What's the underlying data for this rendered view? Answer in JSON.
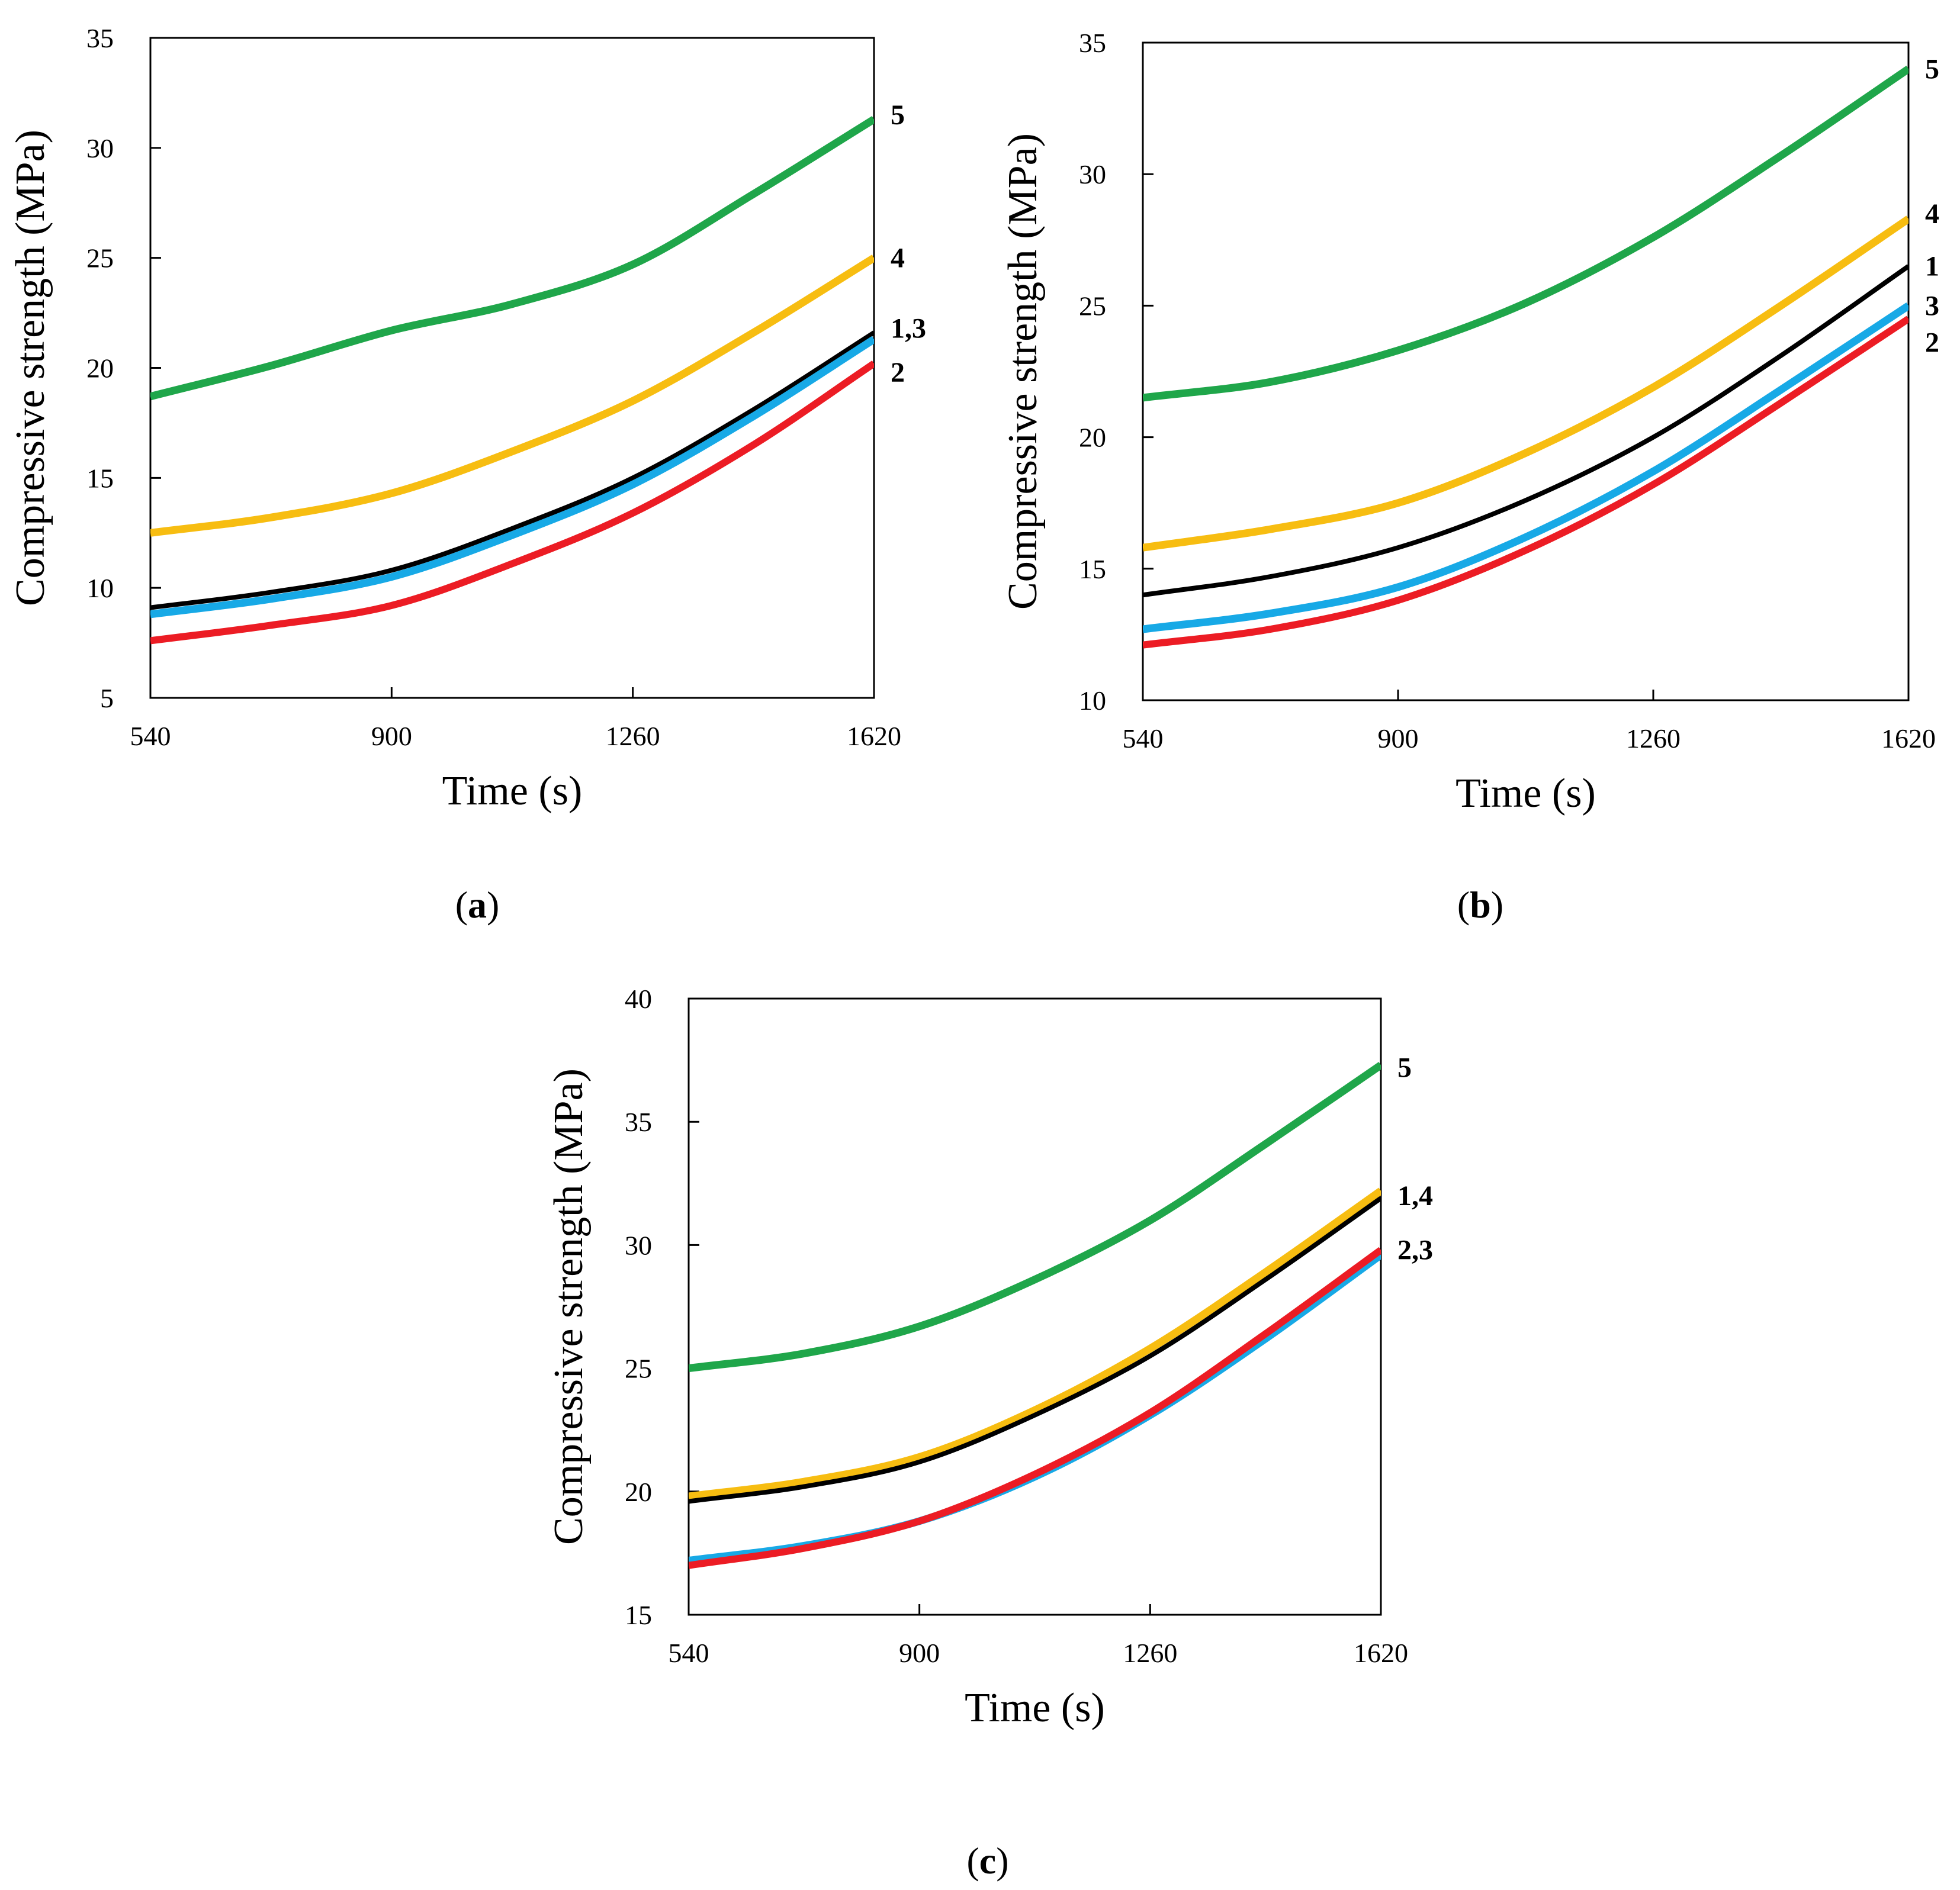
{
  "chart_data": [
    {
      "type": "line",
      "panel": "a",
      "xlabel": "Time (s)",
      "ylabel": "Compressive strength (MPa)",
      "xlim": [
        540,
        1620
      ],
      "ylim": [
        5,
        35
      ],
      "xticks": [
        540,
        900,
        1260,
        1620
      ],
      "yticks": [
        5,
        10,
        15,
        20,
        25,
        30,
        35
      ],
      "grid": false,
      "series": [
        {
          "name": "5",
          "color": "#1fa64a",
          "x": [
            540,
            720,
            900,
            1080,
            1260,
            1440,
            1620
          ],
          "y": [
            18.7,
            20.1,
            21.7,
            22.9,
            24.7,
            27.9,
            31.3
          ]
        },
        {
          "name": "4",
          "color": "#f7bd11",
          "x": [
            540,
            720,
            900,
            1080,
            1260,
            1440,
            1620
          ],
          "y": [
            12.5,
            13.2,
            14.3,
            16.2,
            18.5,
            21.6,
            25.0
          ]
        },
        {
          "name": "1",
          "color": "#000000",
          "x": [
            540,
            720,
            900,
            1080,
            1260,
            1440,
            1620
          ],
          "y": [
            9.1,
            9.8,
            10.8,
            12.7,
            15.0,
            18.1,
            21.6
          ]
        },
        {
          "name": "3",
          "color": "#17a9e6",
          "x": [
            540,
            720,
            900,
            1080,
            1260,
            1440,
            1620
          ],
          "y": [
            8.8,
            9.5,
            10.5,
            12.4,
            14.7,
            17.8,
            21.3
          ]
        },
        {
          "name": "2",
          "color": "#ec1c24",
          "x": [
            540,
            720,
            900,
            1080,
            1260,
            1440,
            1620
          ],
          "y": [
            7.6,
            8.3,
            9.2,
            11.1,
            13.4,
            16.5,
            20.2
          ]
        }
      ],
      "end_labels": [
        {
          "text": "5",
          "y": 31.5
        },
        {
          "text": "4",
          "y": 25.0
        },
        {
          "text": "1,3",
          "y": 21.8
        },
        {
          "text": "2",
          "y": 19.8
        }
      ],
      "caption_letter": "a"
    },
    {
      "type": "line",
      "panel": "b",
      "xlabel": "Time (s)",
      "ylabel": "Compressive strength (MPa)",
      "xlim": [
        540,
        1620
      ],
      "ylim": [
        10,
        35
      ],
      "xticks": [
        540,
        900,
        1260,
        1620
      ],
      "yticks": [
        10,
        15,
        20,
        25,
        30,
        35
      ],
      "grid": false,
      "series": [
        {
          "name": "5",
          "color": "#1fa64a",
          "x": [
            540,
            720,
            900,
            1080,
            1260,
            1440,
            1620
          ],
          "y": [
            21.5,
            22.1,
            23.3,
            25.1,
            27.6,
            30.7,
            34.0
          ]
        },
        {
          "name": "4",
          "color": "#f7bd11",
          "x": [
            540,
            720,
            900,
            1080,
            1260,
            1440,
            1620
          ],
          "y": [
            15.8,
            16.5,
            17.5,
            19.4,
            21.9,
            25.0,
            28.3
          ]
        },
        {
          "name": "1",
          "color": "#000000",
          "x": [
            540,
            720,
            900,
            1080,
            1260,
            1440,
            1620
          ],
          "y": [
            14.0,
            14.7,
            15.8,
            17.6,
            20.0,
            23.1,
            26.5
          ]
        },
        {
          "name": "3",
          "color": "#17a9e6",
          "x": [
            540,
            720,
            900,
            1080,
            1260,
            1440,
            1620
          ],
          "y": [
            12.7,
            13.3,
            14.3,
            16.2,
            18.7,
            21.8,
            25.0
          ]
        },
        {
          "name": "2",
          "color": "#ec1c24",
          "x": [
            540,
            720,
            900,
            1080,
            1260,
            1440,
            1620
          ],
          "y": [
            12.1,
            12.7,
            13.8,
            15.7,
            18.2,
            21.3,
            24.5
          ]
        }
      ],
      "end_labels": [
        {
          "text": "5",
          "y": 34.0
        },
        {
          "text": "4",
          "y": 28.5
        },
        {
          "text": "1",
          "y": 26.5
        },
        {
          "text": "3",
          "y": 25.0
        },
        {
          "text": "2",
          "y": 23.6
        }
      ],
      "caption_letter": "b"
    },
    {
      "type": "line",
      "panel": "c",
      "xlabel": "Time (s)",
      "ylabel": "Compressive strength (MPa)",
      "xlim": [
        540,
        1620
      ],
      "ylim": [
        15,
        40
      ],
      "xticks": [
        540,
        900,
        1260,
        1620
      ],
      "yticks": [
        15,
        20,
        25,
        30,
        35,
        40
      ],
      "grid": false,
      "series": [
        {
          "name": "5",
          "color": "#1fa64a",
          "x": [
            540,
            720,
            900,
            1080,
            1260,
            1440,
            1620
          ],
          "y": [
            25.0,
            25.6,
            26.7,
            28.6,
            31.0,
            34.1,
            37.3
          ]
        },
        {
          "name": "4",
          "color": "#f7bd11",
          "x": [
            540,
            720,
            900,
            1080,
            1260,
            1440,
            1620
          ],
          "y": [
            19.8,
            20.4,
            21.4,
            23.3,
            25.8,
            28.9,
            32.2
          ]
        },
        {
          "name": "1",
          "color": "#000000",
          "x": [
            540,
            720,
            900,
            1080,
            1260,
            1440,
            1620
          ],
          "y": [
            19.6,
            20.2,
            21.2,
            23.1,
            25.5,
            28.6,
            31.9
          ]
        },
        {
          "name": "3",
          "color": "#17a9e6",
          "x": [
            540,
            720,
            900,
            1080,
            1260,
            1440,
            1620
          ],
          "y": [
            17.2,
            17.8,
            18.8,
            20.6,
            23.1,
            26.2,
            29.6
          ]
        },
        {
          "name": "2",
          "color": "#ec1c24",
          "x": [
            540,
            720,
            900,
            1080,
            1260,
            1440,
            1620
          ],
          "y": [
            17.0,
            17.7,
            18.8,
            20.7,
            23.2,
            26.4,
            29.8
          ]
        }
      ],
      "end_labels": [
        {
          "text": "5",
          "y": 37.2
        },
        {
          "text": "1,4",
          "y": 32.0
        },
        {
          "text": "2,3",
          "y": 29.8
        }
      ],
      "caption_letter": "c"
    }
  ]
}
